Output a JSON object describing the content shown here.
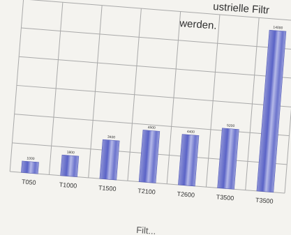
{
  "header_text": {
    "line1": "ustrielle Filtr",
    "line2": "werden."
  },
  "chart_data": {
    "type": "bar",
    "categories": [
      "T050",
      "T1000",
      "T1500",
      "T2100",
      "T2600",
      "T3500",
      "T3500"
    ],
    "values": [
      1000,
      1800,
      3400,
      4500,
      4400,
      5200,
      14000
    ],
    "y_tick_labels": [
      "",
      "",
      "",
      "",
      "",
      ""
    ],
    "grid": true,
    "xlabel_partial": "Filt..."
  }
}
